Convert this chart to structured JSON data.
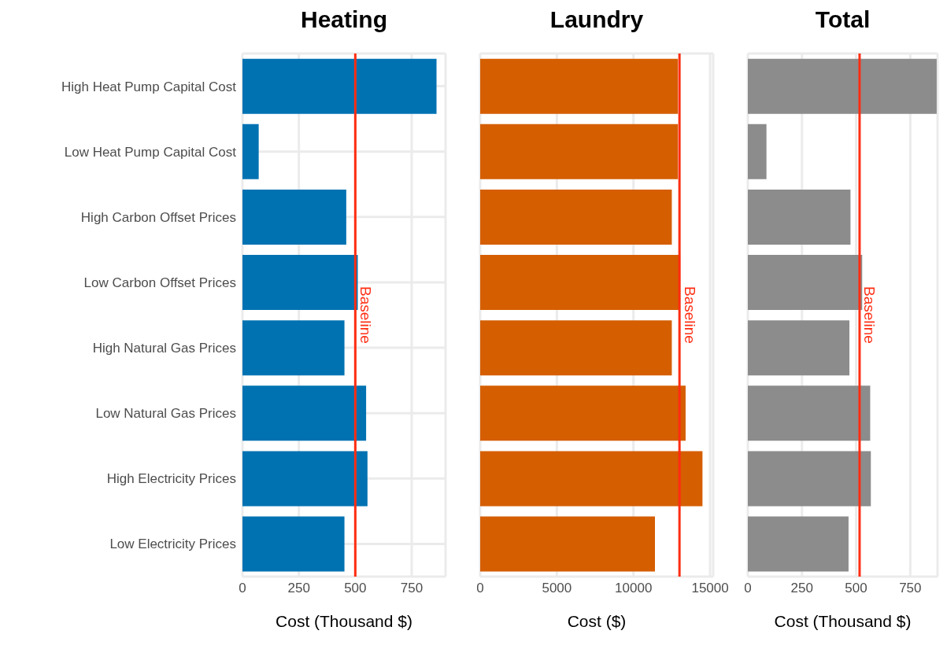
{
  "chart_data": [
    {
      "type": "bar",
      "orientation": "horizontal",
      "title": "Heating",
      "xlabel": "Cost (Thousand $)",
      "categories": [
        "High Heat Pump Capital Cost",
        "Low Heat Pump Capital Cost",
        "High Carbon Offset Prices",
        "Low Carbon Offset Prices",
        "High Natural Gas Prices",
        "Low Natural Gas Prices",
        "High Electricity Prices",
        "Low Electricity Prices"
      ],
      "values": [
        860,
        72,
        460,
        511,
        452,
        548,
        554,
        452
      ],
      "color": "#0072b2",
      "xlim": [
        0,
        900
      ],
      "xticks": [
        0,
        250,
        500,
        750
      ],
      "grid": true,
      "ref_lines": [
        {
          "axis": "x",
          "value": 500,
          "label": "Baseline",
          "color": "#ff2d12"
        }
      ]
    },
    {
      "type": "bar",
      "orientation": "horizontal",
      "title": "Laundry",
      "xlabel": "Cost ($)",
      "categories": [
        null,
        null,
        null,
        null,
        null,
        null,
        null,
        null
      ],
      "values": [
        12900,
        12900,
        12500,
        13050,
        12500,
        13400,
        14500,
        11400
      ],
      "color": "#d55e00",
      "xlim": [
        0,
        15200
      ],
      "xticks": [
        0,
        5000,
        10000,
        15000
      ],
      "grid": true,
      "tick_labels": "x",
      "ref_lines": [
        {
          "axis": "x",
          "value": 13000,
          "label": "Baseline",
          "color": "#ff2d12"
        }
      ]
    },
    {
      "type": "bar",
      "orientation": "horizontal",
      "title": "Total",
      "xlabel": "Cost (Thousand $)",
      "categories": [
        null,
        null,
        null,
        null,
        null,
        null,
        null,
        null
      ],
      "values": [
        872,
        86,
        474,
        528,
        469,
        565,
        568,
        465
      ],
      "color": "#8c8c8c",
      "xlim": [
        0,
        876
      ],
      "xticks": [
        0,
        250,
        500,
        750
      ],
      "grid": true,
      "tick_labels": "x",
      "ref_lines": [
        {
          "axis": "x",
          "value": 516,
          "label": "Baseline",
          "color": "#ff2d12"
        }
      ]
    }
  ]
}
